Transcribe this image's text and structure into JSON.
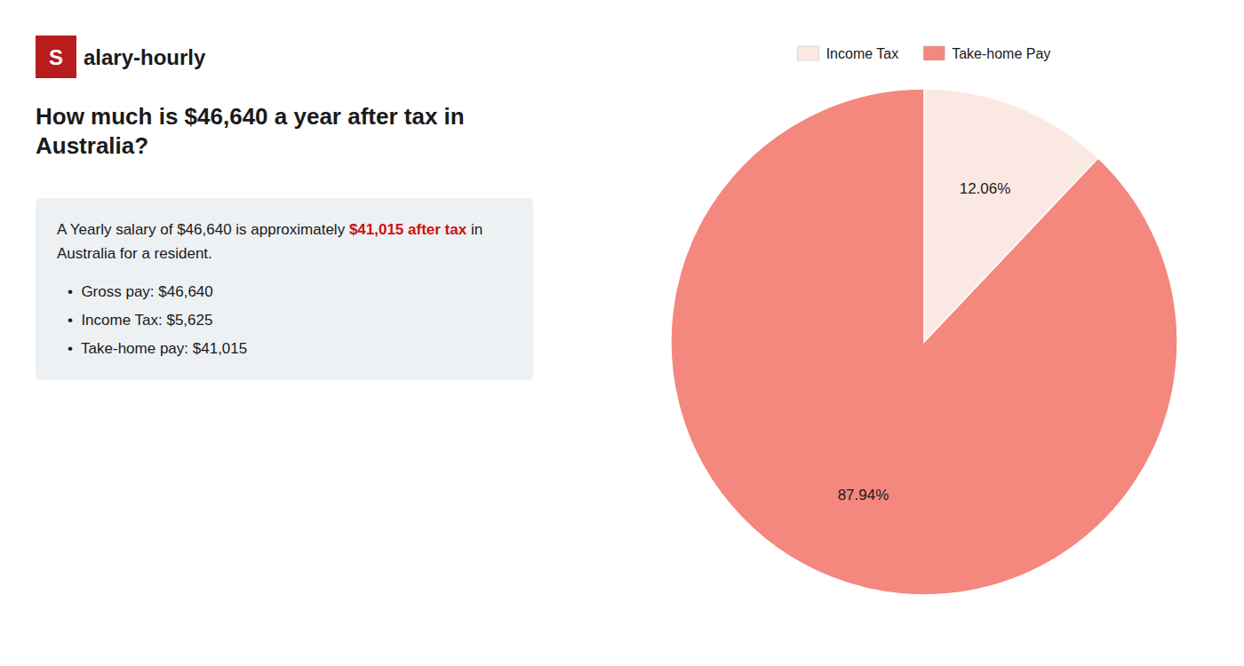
{
  "chart_data": {
    "type": "pie",
    "title": "How much is $46,640 a year after tax in Australia?",
    "categories": [
      "Income Tax",
      "Take-home Pay"
    ],
    "values": [
      12.06,
      87.94
    ],
    "value_labels": [
      "12.06%",
      "87.94%"
    ],
    "colors": [
      "#fce8e2",
      "#f4877e"
    ],
    "data_labels": true,
    "legend": "top",
    "annotations": {
      "logo": [
        {
          "text": "S",
          "color": "#b81c1c"
        },
        {
          "text": "alary-hourly"
        }
      ],
      "summary": [
        [
          {
            "text": "A Yearly salary of $46,640 is approximately "
          },
          {
            "text": "$41,015 after tax",
            "color": "#cc1111"
          },
          {
            "text": " in"
          }
        ],
        [
          {
            "text": "Australia for a resident."
          }
        ]
      ],
      "bullets": [
        "•  Gross pay: $46,640",
        "•  Income Tax: $5,625",
        "•  Take-home pay: $41,015"
      ]
    }
  }
}
